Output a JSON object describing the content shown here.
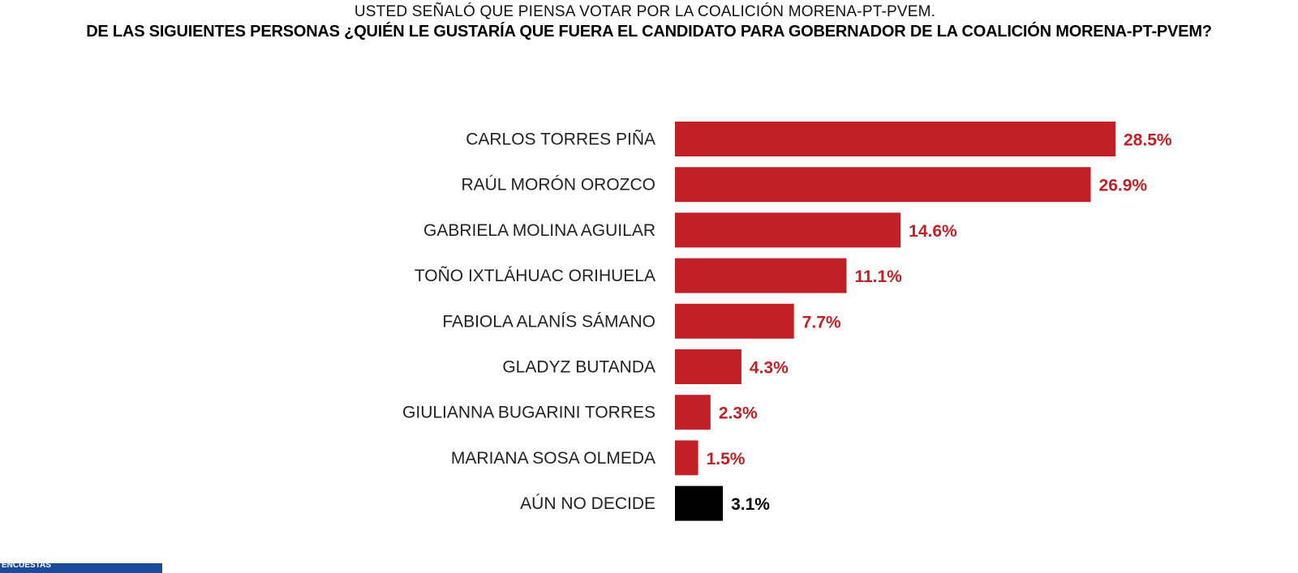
{
  "header": {
    "subtitle": "USTED SEÑALÓ QUE PIENSA VOTAR POR LA COALICIÓN MORENA-PT-PVEM.",
    "title": "DE LAS SIGUIENTES PERSONAS ¿QUIÉN LE GUSTARÍA QUE FUERA EL CANDIDATO PARA GOBERNADOR DE LA COALICIÓN MORENA-PT-PVEM?"
  },
  "logo": {
    "text": "ENCUESTAS"
  },
  "colors": {
    "bar": "#c02026",
    "undecided": "#000000"
  },
  "chart_data": {
    "type": "bar",
    "orientation": "horizontal",
    "title": "DE LAS SIGUIENTES PERSONAS ¿QUIÉN LE GUSTARÍA QUE FUERA EL CANDIDATO PARA GOBERNADOR DE LA COALICIÓN MORENA-PT-PVEM?",
    "categories": [
      "CARLOS TORRES PIÑA",
      "RAÚL MORÓN OROZCO",
      "GABRIELA MOLINA AGUILAR",
      "TOÑO IXTLÁHUAC ORIHUELA",
      "FABIOLA ALANÍS SÁMANO",
      "GLADYZ BUTANDA",
      "GIULIANNA BUGARINI TORRES",
      "MARIANA SOSA OLMEDA",
      "AÚN NO DECIDE"
    ],
    "values": [
      28.5,
      26.9,
      14.6,
      11.1,
      7.7,
      4.3,
      2.3,
      1.5,
      3.1
    ],
    "labels": [
      "28.5%",
      "26.9%",
      "14.6%",
      "11.1%",
      "7.7%",
      "4.3%",
      "2.3%",
      "1.5%",
      "3.1%"
    ],
    "xlabel": "",
    "ylabel": "",
    "xlim": [
      0,
      30
    ],
    "grid": false
  }
}
